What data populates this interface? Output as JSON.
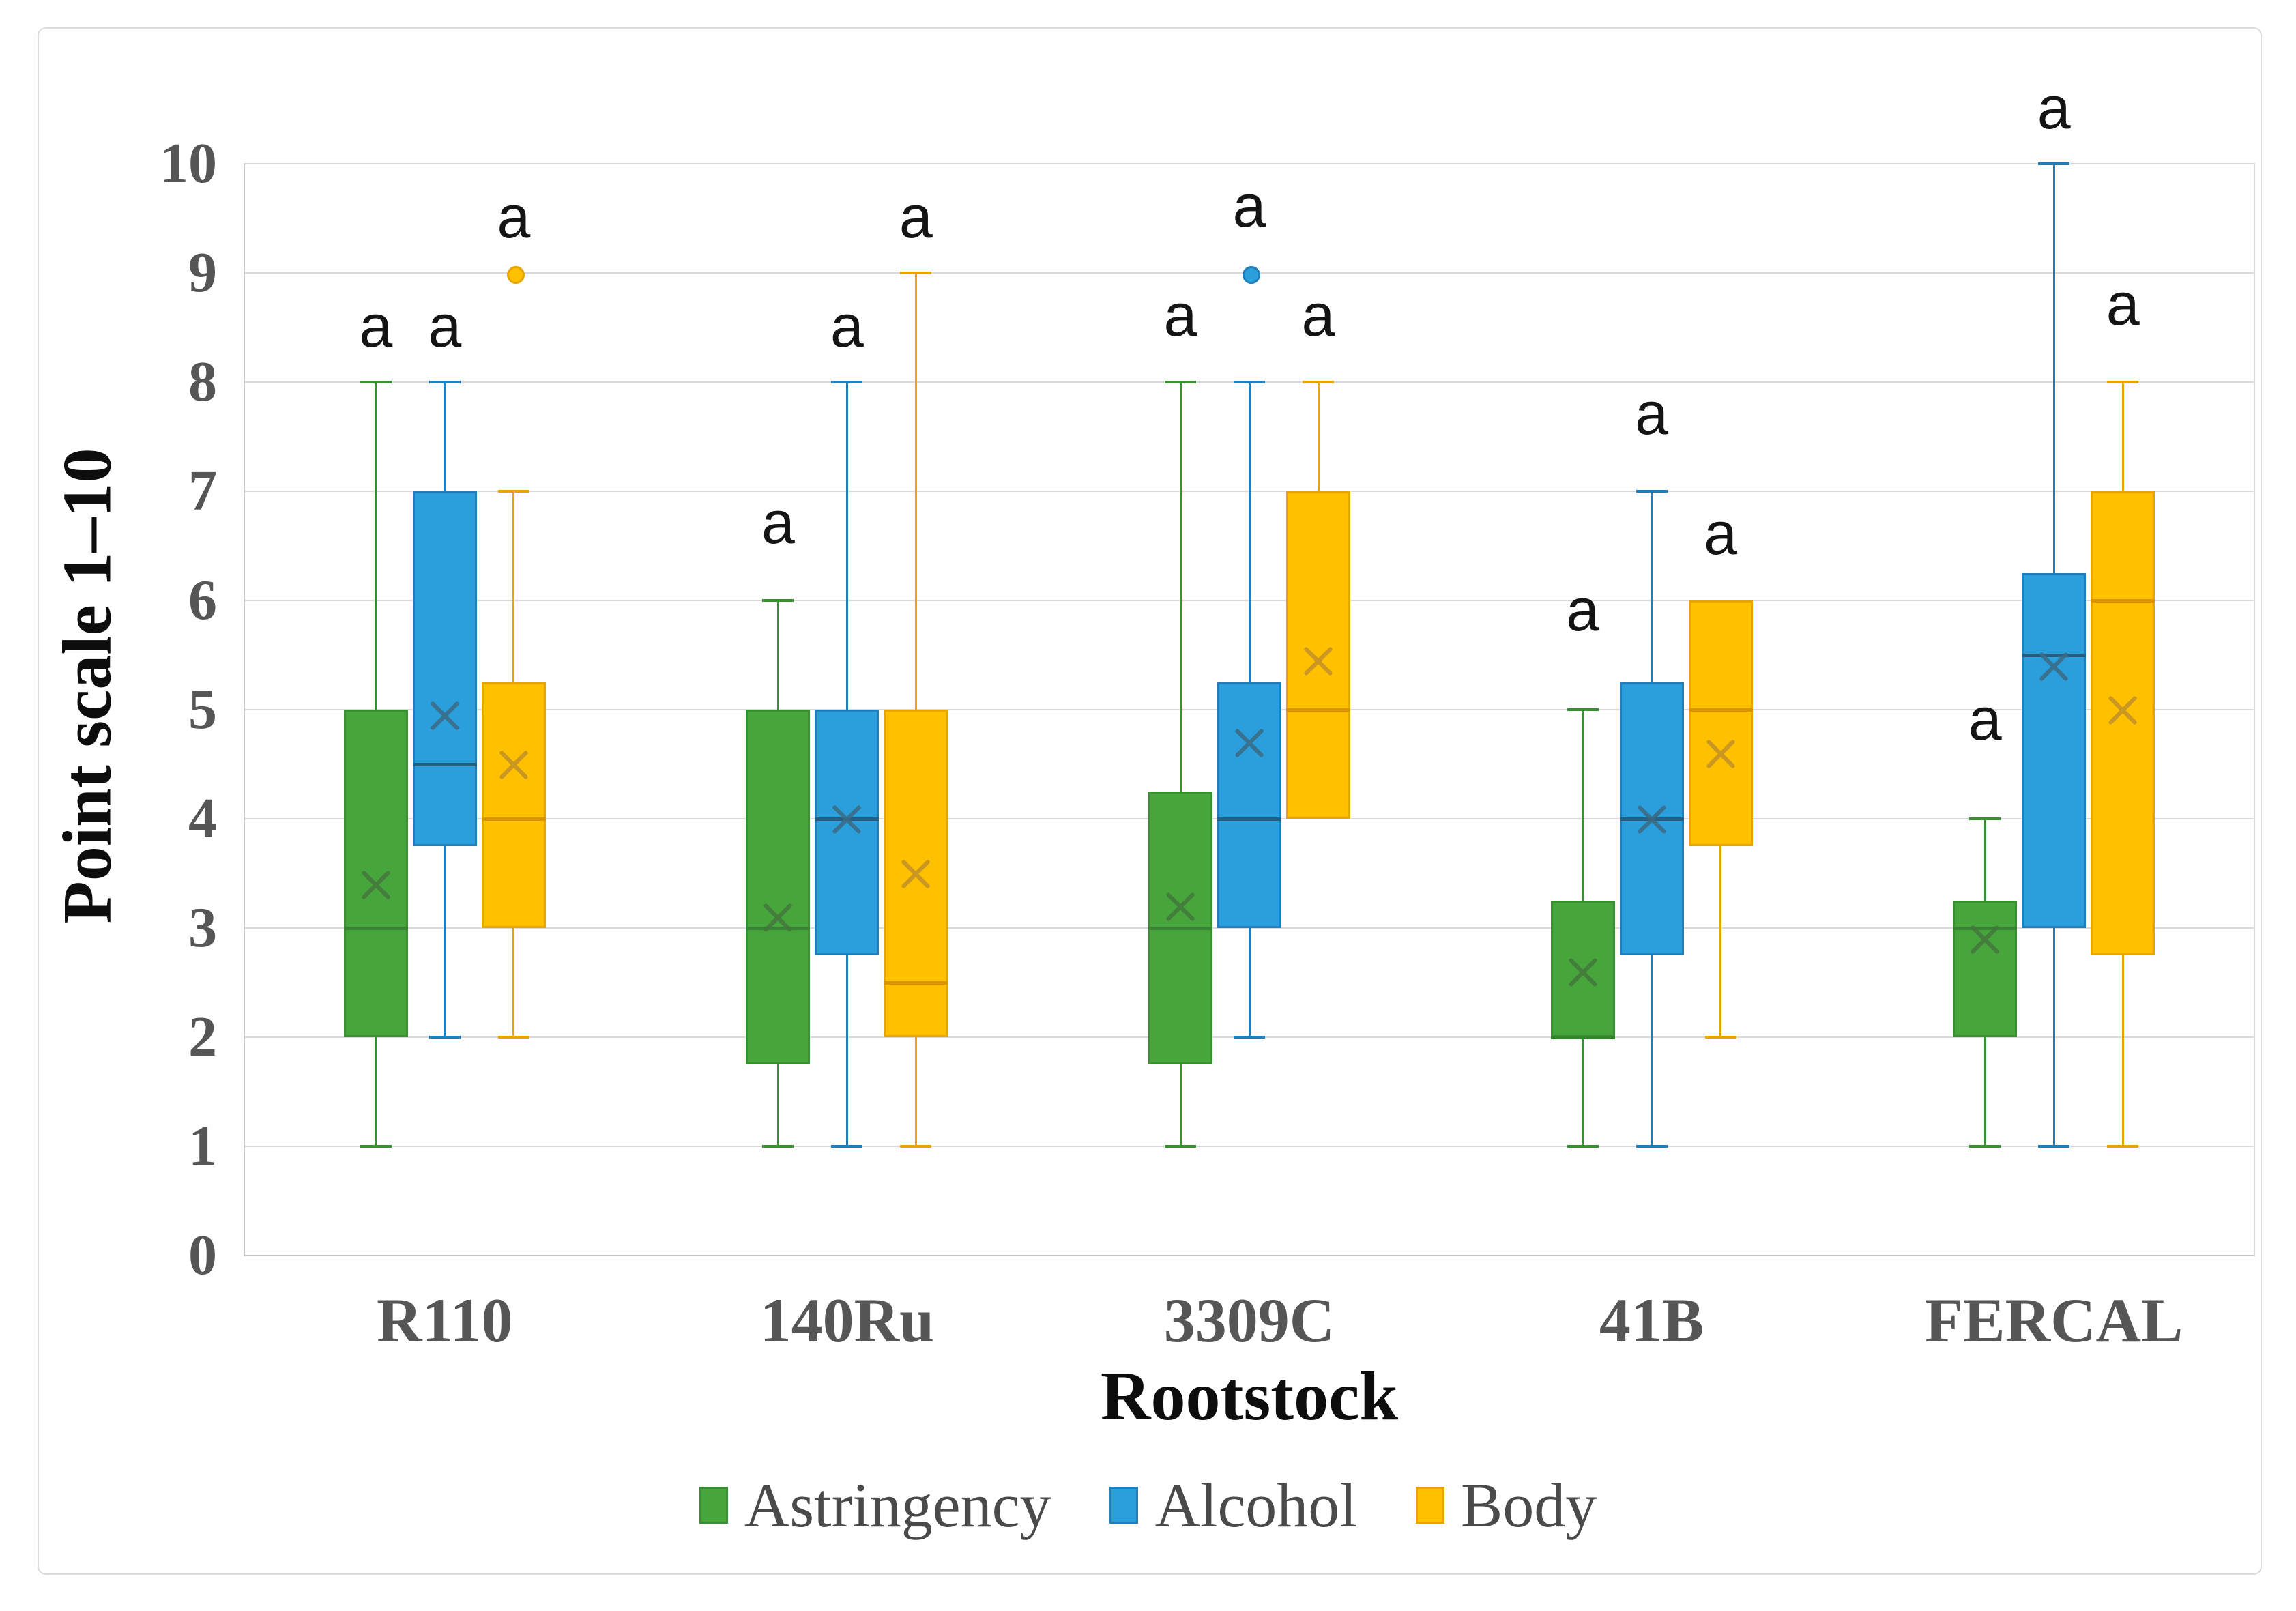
{
  "chart_data": {
    "type": "boxplot",
    "title": "",
    "xlabel": "Rootstock",
    "ylabel": "Point scale 1–10",
    "ylim": [
      0,
      10
    ],
    "yticks": [
      0,
      1,
      2,
      3,
      4,
      5,
      6,
      7,
      8,
      9,
      10
    ],
    "grid": true,
    "legend_position": "bottom",
    "categories": [
      "R110",
      "140Ru",
      "3309C",
      "41B",
      "FERCAL"
    ],
    "significance_letter": "a",
    "style": {
      "background": "#FFFFFF",
      "figure_border_color": "#DBDBDB",
      "grid_color": "#D9D9D9",
      "axis_line_color": "#C4C4C4",
      "tick_label_color": "#565656",
      "category_label_color": "#565656",
      "axis_title_color": "#0D0D0D",
      "legend_text_color": "#4A4A4A",
      "sig_label_color": "#141414"
    },
    "series": [
      {
        "name": "Astringency",
        "fill": "#46A63C",
        "border": "#3B8F33",
        "median_color": "#358330",
        "mean_color": "#44763D",
        "boxes": [
          {
            "category": "R110",
            "whisker_low": 1,
            "q1": 2,
            "median": 3,
            "q3": 5,
            "whisker_high": 8,
            "mean": 3.4,
            "outliers": [],
            "sig": "a",
            "sig_y": 8.5
          },
          {
            "category": "140Ru",
            "whisker_low": 1,
            "q1": 1.75,
            "median": 3,
            "q3": 5,
            "whisker_high": 6,
            "mean": 3.1,
            "outliers": [],
            "sig": "a",
            "sig_y": 6.7
          },
          {
            "category": "3309C",
            "whisker_low": 1,
            "q1": 1.75,
            "median": 3,
            "q3": 4.25,
            "whisker_high": 8,
            "mean": 3.2,
            "outliers": [],
            "sig": "a",
            "sig_y": 8.6
          },
          {
            "category": "41B",
            "whisker_low": 1,
            "q1": 2,
            "median": 2,
            "q3": 3.25,
            "whisker_high": 5,
            "mean": 2.6,
            "outliers": [],
            "sig": "a",
            "sig_y": 5.9
          },
          {
            "category": "FERCAL",
            "whisker_low": 1,
            "q1": 2,
            "median": 3,
            "q3": 3.25,
            "whisker_high": 4,
            "mean": 2.9,
            "outliers": [],
            "sig": "a",
            "sig_y": 4.9
          }
        ]
      },
      {
        "name": "Alcohol",
        "fill": "#2B9FDB",
        "border": "#1F7FBC",
        "median_color": "#2A5E7E",
        "mean_color": "#3C6A84",
        "boxes": [
          {
            "category": "R110",
            "whisker_low": 2,
            "q1": 3.75,
            "median": 4.5,
            "q3": 7,
            "whisker_high": 8,
            "mean": 4.95,
            "outliers": [],
            "sig": "a",
            "sig_y": 8.5
          },
          {
            "category": "140Ru",
            "whisker_low": 1,
            "q1": 2.75,
            "median": 4,
            "q3": 5,
            "whisker_high": 8,
            "mean": 4.0,
            "outliers": [],
            "sig": "a",
            "sig_y": 8.5
          },
          {
            "category": "3309C",
            "whisker_low": 2,
            "q1": 3,
            "median": 4,
            "q3": 5.25,
            "whisker_high": 8,
            "mean": 4.7,
            "outliers": [
              9
            ],
            "sig": "a",
            "sig_y": 9.6
          },
          {
            "category": "41B",
            "whisker_low": 1,
            "q1": 2.75,
            "median": 4,
            "q3": 5.25,
            "whisker_high": 7,
            "mean": 4.0,
            "outliers": [],
            "sig": "a",
            "sig_y": 7.7
          },
          {
            "category": "FERCAL",
            "whisker_low": 1,
            "q1": 3,
            "median": 5.5,
            "q3": 6.25,
            "whisker_high": 10,
            "mean": 5.4,
            "outliers": [],
            "sig": "a",
            "sig_y": 10.5
          }
        ]
      },
      {
        "name": "Body",
        "fill": "#FFC000",
        "border": "#E8A500",
        "median_color": "#DB9300",
        "mean_color": "#C3912A",
        "boxes": [
          {
            "category": "R110",
            "whisker_low": 2,
            "q1": 3,
            "median": 4,
            "q3": 5.25,
            "whisker_high": 7,
            "mean": 4.5,
            "outliers": [
              9
            ],
            "sig": "a",
            "sig_y": 9.5
          },
          {
            "category": "140Ru",
            "whisker_low": 1,
            "q1": 2,
            "median": 2.5,
            "q3": 5,
            "whisker_high": 9,
            "mean": 3.5,
            "outliers": [],
            "sig": "a",
            "sig_y": 9.5
          },
          {
            "category": "3309C",
            "whisker_low": 4,
            "q1": 4,
            "median": 5,
            "q3": 7,
            "whisker_high": 8,
            "mean": 5.45,
            "outliers": [],
            "sig": "a",
            "sig_y": 8.6
          },
          {
            "category": "41B",
            "whisker_low": 2,
            "q1": 3.75,
            "median": 5,
            "q3": 6,
            "whisker_high": 6,
            "mean": 4.6,
            "outliers": [],
            "sig": "a",
            "sig_y": 6.6
          },
          {
            "category": "FERCAL",
            "whisker_low": 1,
            "q1": 2.75,
            "median": 6,
            "q3": 7,
            "whisker_high": 8,
            "mean": 5.0,
            "outliers": [],
            "sig": "a",
            "sig_y": 8.7
          }
        ]
      }
    ]
  }
}
